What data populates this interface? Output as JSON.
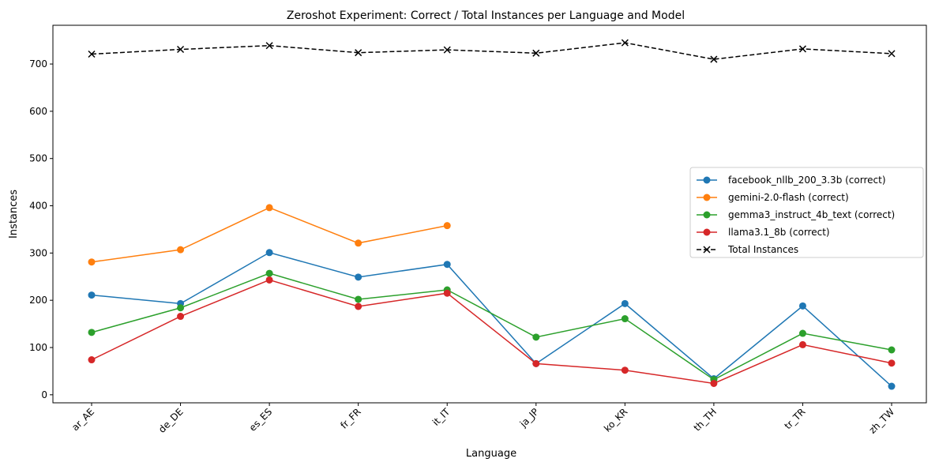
{
  "chart_data": {
    "type": "line",
    "title": "Zeroshot Experiment: Correct / Total Instances per Language and Model",
    "xlabel": "Language",
    "ylabel": "Instances",
    "categories": [
      "ar_AE",
      "de_DE",
      "es_ES",
      "fr_FR",
      "it_IT",
      "ja_JP",
      "ko_KR",
      "th_TH",
      "tr_TR",
      "zh_TW"
    ],
    "ylim": [
      -17,
      782
    ],
    "yticks": [
      0,
      100,
      200,
      300,
      400,
      500,
      600,
      700
    ],
    "grid": false,
    "legend_position": "center-right",
    "series": [
      {
        "name": "facebook_nllb_200_3.3b (correct)",
        "color": "#1f77b4",
        "marker": "circle",
        "dash": "solid",
        "values": [
          211,
          193,
          301,
          249,
          276,
          66,
          193,
          34,
          188,
          18
        ]
      },
      {
        "name": "gemini-2.0-flash (correct)",
        "color": "#ff7f0e",
        "marker": "circle",
        "dash": "solid",
        "values": [
          281,
          307,
          396,
          321,
          358,
          null,
          null,
          null,
          null,
          null
        ]
      },
      {
        "name": "gemma3_instruct_4b_text (correct)",
        "color": "#2ca02c",
        "marker": "circle",
        "dash": "solid",
        "values": [
          132,
          184,
          257,
          202,
          222,
          122,
          161,
          32,
          130,
          95
        ]
      },
      {
        "name": "llama3.1_8b (correct)",
        "color": "#d62728",
        "marker": "circle",
        "dash": "solid",
        "values": [
          74,
          166,
          243,
          187,
          215,
          66,
          52,
          24,
          106,
          67
        ]
      },
      {
        "name": "Total Instances",
        "color": "#000000",
        "marker": "x",
        "dash": "dashed",
        "values": [
          721,
          731,
          739,
          724,
          730,
          723,
          745,
          710,
          732,
          722
        ]
      }
    ]
  }
}
